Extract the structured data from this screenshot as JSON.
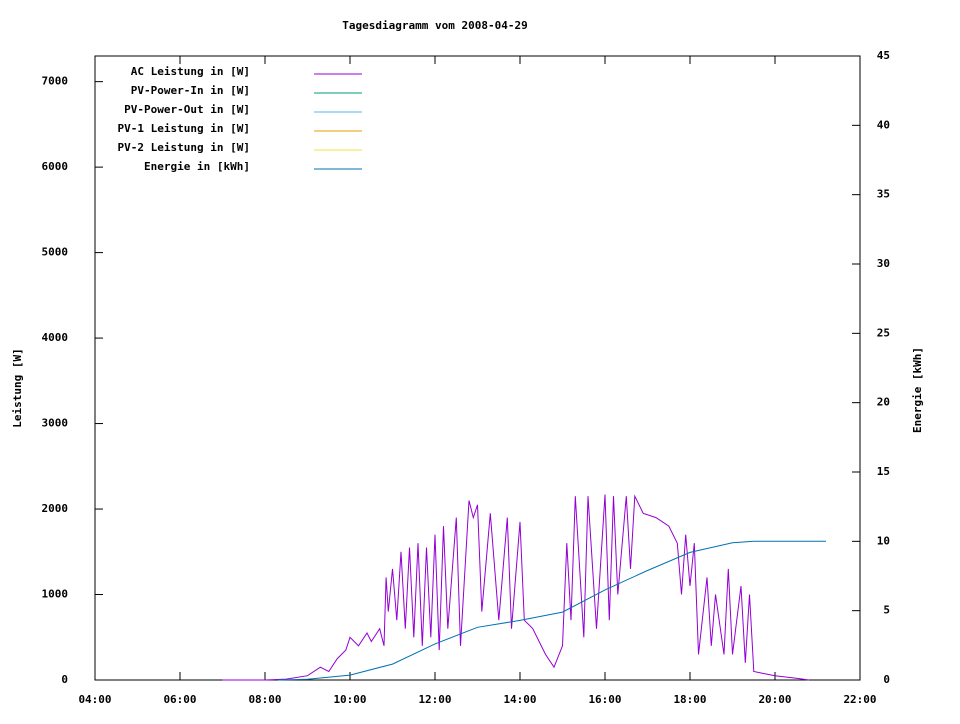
{
  "chart_data": {
    "type": "line",
    "title": "Tagesdiagramm vom 2008-04-29",
    "ylabel": "Leistung [W]",
    "y2label": "Energie [kWh]",
    "xlim": [
      4,
      22
    ],
    "xticks": [
      {
        "value": 4,
        "label": "04:00"
      },
      {
        "value": 6,
        "label": "06:00"
      },
      {
        "value": 8,
        "label": "08:00"
      },
      {
        "value": 10,
        "label": "10:00"
      },
      {
        "value": 12,
        "label": "12:00"
      },
      {
        "value": 14,
        "label": "14:00"
      },
      {
        "value": 16,
        "label": "16:00"
      },
      {
        "value": 18,
        "label": "18:00"
      },
      {
        "value": 20,
        "label": "20:00"
      },
      {
        "value": 22,
        "label": "22:00"
      }
    ],
    "ylim": [
      0,
      7300
    ],
    "yticks": [
      0,
      1000,
      2000,
      3000,
      4000,
      5000,
      6000,
      7000
    ],
    "y2lim": [
      0,
      45
    ],
    "y2ticks": [
      0,
      5,
      10,
      15,
      20,
      25,
      30,
      35,
      40,
      45
    ],
    "legend": "top-left",
    "series": [
      {
        "name": "AC Leistung in [W]",
        "color": "#9400d3",
        "x": [
          7.0,
          8.0,
          8.5,
          9.0,
          9.3,
          9.5,
          9.7,
          9.9,
          10.0,
          10.2,
          10.4,
          10.5,
          10.7,
          10.8,
          10.85,
          10.9,
          11.0,
          11.1,
          11.2,
          11.3,
          11.4,
          11.5,
          11.6,
          11.7,
          11.8,
          11.9,
          12.0,
          12.1,
          12.2,
          12.3,
          12.5,
          12.6,
          12.8,
          12.9,
          13.0,
          13.1,
          13.3,
          13.5,
          13.7,
          13.8,
          14.0,
          14.1,
          14.3,
          14.6,
          14.8,
          15.0,
          15.1,
          15.2,
          15.3,
          15.5,
          15.6,
          15.8,
          16.0,
          16.1,
          16.2,
          16.3,
          16.5,
          16.6,
          16.7,
          16.9,
          17.2,
          17.5,
          17.7,
          17.8,
          17.9,
          18.0,
          18.1,
          18.2,
          18.4,
          18.5,
          18.6,
          18.8,
          18.9,
          19.0,
          19.2,
          19.3,
          19.4,
          19.5,
          19.7,
          20.0,
          20.5,
          20.8
        ],
        "values": [
          0,
          0,
          10,
          50,
          150,
          100,
          250,
          350,
          500,
          400,
          550,
          450,
          600,
          400,
          1200,
          800,
          1300,
          700,
          1500,
          600,
          1550,
          500,
          1600,
          400,
          1550,
          500,
          1700,
          350,
          1800,
          600,
          1900,
          400,
          2100,
          1900,
          2050,
          800,
          1950,
          700,
          1900,
          600,
          1850,
          700,
          600,
          300,
          150,
          400,
          1600,
          700,
          2150,
          500,
          2150,
          600,
          2170,
          700,
          2150,
          1000,
          2150,
          1300,
          2150,
          1950,
          1900,
          1800,
          1600,
          1000,
          1700,
          1100,
          1600,
          300,
          1200,
          400,
          1000,
          300,
          1300,
          300,
          1100,
          200,
          1000,
          100,
          80,
          50,
          20,
          0
        ]
      },
      {
        "name": "PV-Power-In in [W]",
        "color": "#009e73",
        "x": [],
        "values": []
      },
      {
        "name": "PV-Power-Out in [W]",
        "color": "#56b4e9",
        "x": [],
        "values": []
      },
      {
        "name": "PV-1 Leistung in [W]",
        "color": "#e69f00",
        "x": [],
        "values": []
      },
      {
        "name": "PV-2 Leistung in [W]",
        "color": "#f0e442",
        "x": [],
        "values": []
      },
      {
        "name": "Energie in [kWh]",
        "color": "#0072b2",
        "axis": "y2",
        "x": [
          8.3,
          9.0,
          10.0,
          11.0,
          12.0,
          13.0,
          14.0,
          15.0,
          16.0,
          17.0,
          18.0,
          19.0,
          19.5,
          21.2
        ],
        "values": [
          0,
          0.05,
          0.35,
          1.15,
          2.6,
          3.8,
          4.3,
          4.9,
          6.5,
          7.9,
          9.2,
          9.9,
          10.0,
          10.0
        ]
      }
    ]
  }
}
